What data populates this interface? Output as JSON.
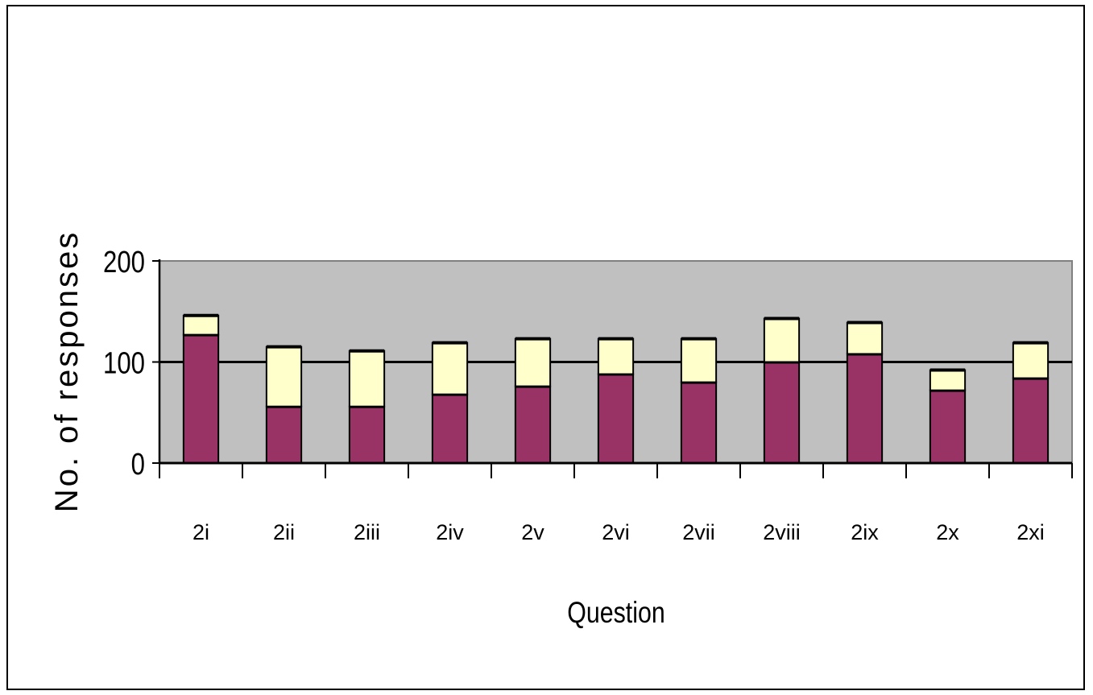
{
  "chart_data": {
    "type": "bar",
    "stacked": true,
    "title": "",
    "xlabel": "Question",
    "ylabel": "No. of responses",
    "ylim": [
      0,
      200
    ],
    "yticks": [
      0,
      100,
      200
    ],
    "grid": "horizontal",
    "legend": "none",
    "categories": [
      "2i",
      "2ii",
      "2iii",
      "2iv",
      "2v",
      "2vi",
      "2vii",
      "2viii",
      "2ix",
      "2x",
      "2xi"
    ],
    "series": [
      {
        "values": [
          127,
          56,
          56,
          68,
          76,
          88,
          80,
          100,
          108,
          72,
          84
        ],
        "color": "#993366"
      },
      {
        "values": [
          19,
          59,
          55,
          51,
          47,
          35,
          43,
          43,
          31,
          20,
          35
        ],
        "color": "#FFFFCC"
      }
    ],
    "plot_background": "#C0C0C0"
  }
}
